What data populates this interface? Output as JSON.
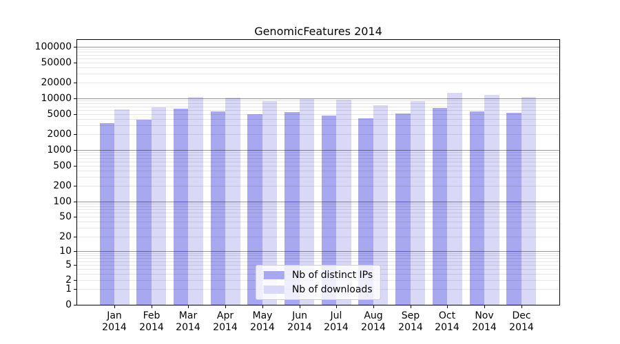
{
  "chart_data": {
    "type": "bar",
    "title": "GenomicFeatures 2014",
    "months": [
      "Jan",
      "Feb",
      "Mar",
      "Apr",
      "May",
      "Jun",
      "Jul",
      "Aug",
      "Sep",
      "Oct",
      "Nov",
      "Dec"
    ],
    "year": "2014",
    "categories": [
      "Jan 2014",
      "Feb 2014",
      "Mar 2014",
      "Apr 2014",
      "May 2014",
      "Jun 2014",
      "Jul 2014",
      "Aug 2014",
      "Sep 2014",
      "Oct 2014",
      "Nov 2014",
      "Dec 2014"
    ],
    "series": [
      {
        "name": "Nb of distinct IPs",
        "key": "distinct-ips",
        "color": "#a8a8f0",
        "values": [
          3270,
          3900,
          6250,
          5580,
          4930,
          5410,
          4690,
          4140,
          5090,
          6500,
          5630,
          5200
        ]
      },
      {
        "name": "Nb of downloads",
        "key": "downloads",
        "color": "#d9d9f7",
        "values": [
          6060,
          6650,
          10600,
          10300,
          8930,
          9610,
          9310,
          7290,
          8760,
          13000,
          11800,
          10700
        ]
      }
    ],
    "y_axis": {
      "scale": "log1p",
      "ticks": [
        0,
        1,
        2,
        5,
        10,
        20,
        50,
        100,
        200,
        500,
        1000,
        2000,
        5000,
        10000,
        20000,
        50000,
        100000
      ],
      "major_gridlines": [
        10,
        100,
        1000,
        10000,
        100000
      ],
      "max_value": 130000
    },
    "legend": {
      "position": "lower center"
    },
    "grid": {
      "major_color": "#949494",
      "minor_color": "#e5e5e5",
      "on": true
    }
  }
}
